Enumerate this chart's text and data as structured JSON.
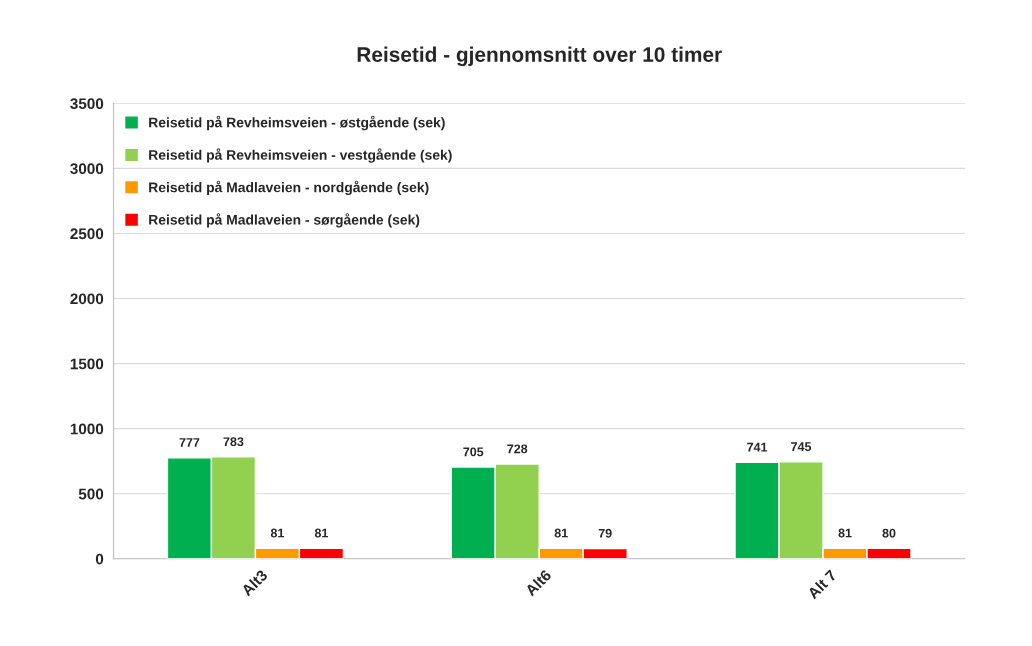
{
  "chart_data": {
    "type": "bar",
    "title": "Reisetid - gjennomsnitt over 10 timer",
    "categories": [
      "Alt3",
      "Alt6",
      "Alt 7"
    ],
    "series": [
      {
        "name": "Reisetid på Revheimsveien - østgående (sek)",
        "color": "#00b050",
        "values": [
          777,
          705,
          741
        ]
      },
      {
        "name": "Reisetid på Revheimsveien - vestgående (sek)",
        "color": "#92d050",
        "values": [
          783,
          728,
          745
        ]
      },
      {
        "name": "Reisetid på Madlaveien - nordgående (sek)",
        "color": "#ff9900",
        "values": [
          81,
          81,
          81
        ]
      },
      {
        "name": "Reisetid på Madlaveien - sørgående (sek)",
        "color": "#ff0000",
        "values": [
          81,
          79,
          80
        ]
      }
    ],
    "ylim": [
      0,
      3500
    ],
    "yticks": [
      0,
      500,
      1000,
      1500,
      2000,
      2500,
      3000,
      3500
    ],
    "grid": "y",
    "legend": "top left",
    "data_labels": true
  }
}
